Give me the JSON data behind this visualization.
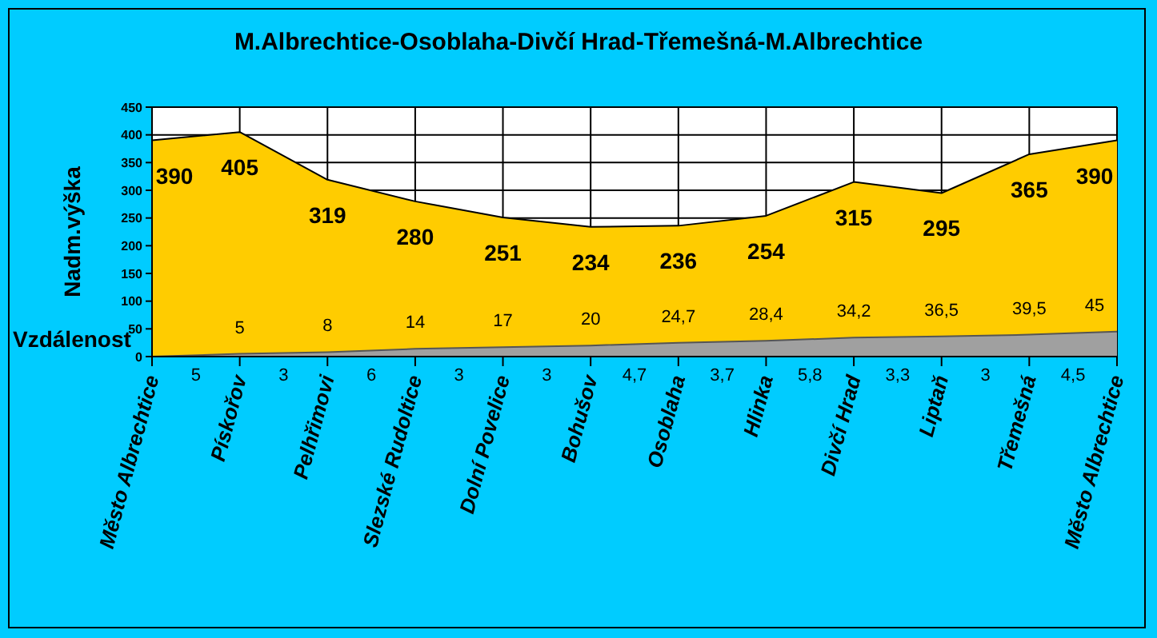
{
  "chart_data": {
    "type": "area",
    "title": "M.Albrechtice-Osoblaha-Divčí Hrad-Třemešná-M.Albrechtice",
    "ylabel": "Nadm.výška",
    "categories": [
      "Město Albrechtice",
      "Pískořov",
      "Pelhřimovi",
      "Slezské Rudoltice",
      "Dolní Povelice",
      "Bohušov",
      "Osoblaha",
      "Hlinka",
      "Divčí Hrad",
      "Liptaň",
      "Třemešná",
      "Město Albrechtice"
    ],
    "series": [
      {
        "color": "#ffcc00",
        "values": [
          390,
          405,
          319,
          280,
          251,
          234,
          236,
          254,
          315,
          295,
          365,
          390
        ],
        "value_labels": [
          "390",
          "405",
          "319",
          "280",
          "251",
          "234",
          "236",
          "254",
          "315",
          "295",
          "365",
          "390"
        ]
      },
      {
        "name": "Vzdálenost",
        "color": "#a0a0a0",
        "values": [
          0,
          5,
          8,
          14,
          17,
          20,
          24.7,
          28.4,
          34.2,
          36.5,
          39.5,
          45
        ],
        "value_labels": [
          null,
          "5",
          "8",
          "14",
          "17",
          "20",
          "24,7",
          "28,4",
          "34,2",
          "36,5",
          "39,5",
          "45"
        ]
      }
    ],
    "annotations": [
      "5",
      "3",
      "6",
      "3",
      "3",
      "4,7",
      "3,7",
      "5,8",
      "3,3",
      "3",
      "4,5"
    ],
    "ylim": [
      0,
      450
    ],
    "yticks": [
      0,
      50,
      100,
      150,
      200,
      250,
      300,
      350,
      400,
      450
    ],
    "grid": true,
    "legend": false
  }
}
